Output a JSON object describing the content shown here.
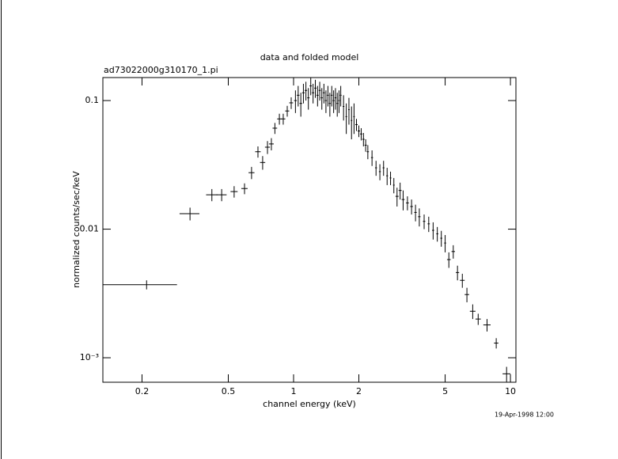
{
  "chart_data": {
    "type": "scatter",
    "title": "data and folded model",
    "subtitle": "ad73022000g310170_1.pi",
    "x_label": "channel energy (keV)",
    "y_label": "normalized counts/sec/keV",
    "timestamp": "19-Apr-1998 12:00",
    "log_x": true,
    "log_y": true,
    "color": "#000000",
    "xlim": [
      0.132,
      10.6
    ],
    "ylim": [
      0.000645,
      0.151
    ],
    "xticks": [
      0.2,
      0.5,
      1,
      2,
      5,
      10
    ],
    "yticks": [
      {
        "value": 0.001,
        "label": "10⁻³"
      },
      0.01,
      0.1
    ],
    "x": [
      0.21,
      0.333,
      0.42,
      0.466,
      0.532,
      0.594,
      0.64,
      0.685,
      0.72,
      0.758,
      0.79,
      0.82,
      0.86,
      0.896,
      0.935,
      0.975,
      1.02,
      1.05,
      1.08,
      1.11,
      1.14,
      1.17,
      1.2,
      1.23,
      1.26,
      1.29,
      1.32,
      1.35,
      1.38,
      1.41,
      1.44,
      1.47,
      1.5,
      1.53,
      1.56,
      1.59,
      1.62,
      1.65,
      1.7,
      1.75,
      1.8,
      1.85,
      1.9,
      1.95,
      2,
      2.05,
      2.1,
      2.15,
      2.2,
      2.3,
      2.4,
      2.5,
      2.6,
      2.7,
      2.8,
      2.9,
      3,
      3.1,
      3.2,
      3.35,
      3.5,
      3.65,
      3.8,
      4,
      4.2,
      4.4,
      4.6,
      4.8,
      5,
      5.2,
      5.45,
      5.7,
      6,
      6.3,
      6.7,
      7.1,
      7.8,
      8.6,
      9.6
    ],
    "y": [
      0.0037,
      0.0132,
      0.0185,
      0.0185,
      0.0196,
      0.0207,
      0.0275,
      0.04,
      0.033,
      0.0434,
      0.046,
      0.061,
      0.072,
      0.072,
      0.083,
      0.096,
      0.1,
      0.11,
      0.095,
      0.115,
      0.12,
      0.105,
      0.13,
      0.115,
      0.125,
      0.11,
      0.12,
      0.105,
      0.115,
      0.1,
      0.11,
      0.095,
      0.11,
      0.1,
      0.105,
      0.095,
      0.1,
      0.11,
      0.09,
      0.075,
      0.085,
      0.07,
      0.075,
      0.065,
      0.058,
      0.055,
      0.05,
      0.045,
      0.04,
      0.036,
      0.03,
      0.028,
      0.03,
      0.026,
      0.025,
      0.022,
      0.018,
      0.02,
      0.017,
      0.016,
      0.015,
      0.0135,
      0.0125,
      0.0115,
      0.011,
      0.0098,
      0.0092,
      0.0085,
      0.0078,
      0.0058,
      0.0067,
      0.0046,
      0.004,
      0.0031,
      0.0023,
      0.002,
      0.0018,
      0.0013,
      0.00075
    ],
    "xerr": [
      0.08,
      0.035,
      0.025,
      0.025,
      0.02,
      0.02,
      0.02,
      0.02,
      0.02,
      0.02,
      0.02,
      0.02,
      0.02,
      0.02,
      0.02,
      0.02,
      0.015,
      0.015,
      0.015,
      0.015,
      0.015,
      0.015,
      0.015,
      0.015,
      0.015,
      0.015,
      0.015,
      0.015,
      0.015,
      0.015,
      0.015,
      0.015,
      0.015,
      0.015,
      0.015,
      0.015,
      0.015,
      0.015,
      0.015,
      0.015,
      0.015,
      0.015,
      0.015,
      0.025,
      0.025,
      0.025,
      0.025,
      0.025,
      0.025,
      0.025,
      0.025,
      0.025,
      0.025,
      0.025,
      0.025,
      0.025,
      0.05,
      0.05,
      0.05,
      0.05,
      0.05,
      0.05,
      0.05,
      0.05,
      0.05,
      0.05,
      0.05,
      0.05,
      0.05,
      0.1,
      0.1,
      0.1,
      0.15,
      0.15,
      0.2,
      0.2,
      0.3,
      0.2,
      0.4
    ],
    "yerr": [
      0.0003,
      0.0015,
      0.002,
      0.002,
      0.002,
      0.002,
      0.003,
      0.004,
      0.004,
      0.005,
      0.005,
      0.006,
      0.007,
      0.007,
      0.008,
      0.01,
      0.02,
      0.02,
      0.02,
      0.02,
      0.02,
      0.02,
      0.02,
      0.02,
      0.02,
      0.02,
      0.02,
      0.02,
      0.02,
      0.02,
      0.02,
      0.02,
      0.02,
      0.02,
      0.02,
      0.02,
      0.02,
      0.02,
      0.02,
      0.02,
      0.02,
      0.02,
      0.02,
      0.007,
      0.006,
      0.006,
      0.006,
      0.005,
      0.005,
      0.005,
      0.004,
      0.004,
      0.004,
      0.004,
      0.003,
      0.003,
      0.003,
      0.003,
      0.003,
      0.002,
      0.002,
      0.002,
      0.002,
      0.0015,
      0.0015,
      0.0015,
      0.0012,
      0.0012,
      0.0012,
      0.0008,
      0.0008,
      0.0006,
      0.0005,
      0.0004,
      0.0003,
      0.0002,
      0.0002,
      0.00012,
      0.0001
    ]
  }
}
